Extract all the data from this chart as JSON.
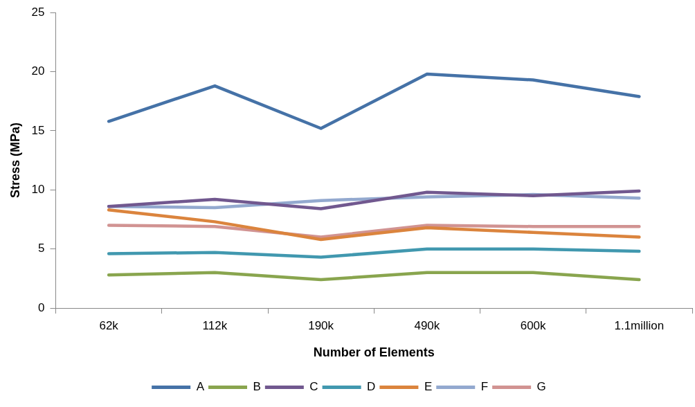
{
  "chart_data": {
    "type": "line",
    "xlabel": "Number of Elements",
    "ylabel": "Stress (MPa)",
    "categories": [
      "62k",
      "112k",
      "190k",
      "490k",
      "600k",
      "1.1million"
    ],
    "ylim": [
      0,
      25
    ],
    "yticks": [
      0,
      5,
      10,
      15,
      20,
      25
    ],
    "grid": false,
    "legend": "bottom",
    "marker": "none",
    "series": [
      {
        "name": "A",
        "color": "#4572a7",
        "values": [
          15.8,
          18.8,
          15.2,
          19.8,
          19.3,
          17.9
        ]
      },
      {
        "name": "B",
        "color": "#89a54e",
        "values": [
          2.8,
          3.0,
          2.4,
          3.0,
          3.0,
          2.4
        ]
      },
      {
        "name": "C",
        "color": "#71588f",
        "values": [
          8.6,
          9.2,
          8.4,
          9.8,
          9.5,
          9.9
        ]
      },
      {
        "name": "D",
        "color": "#4198af",
        "values": [
          4.6,
          4.7,
          4.3,
          5.0,
          5.0,
          4.8
        ]
      },
      {
        "name": "E",
        "color": "#db843d",
        "values": [
          8.3,
          7.3,
          5.8,
          6.8,
          6.4,
          6.0
        ]
      },
      {
        "name": "F",
        "color": "#93a9cf",
        "values": [
          8.6,
          8.5,
          9.1,
          9.4,
          9.6,
          9.3
        ]
      },
      {
        "name": "G",
        "color": "#d19392",
        "values": [
          7.0,
          6.9,
          6.0,
          7.0,
          6.9,
          6.9
        ]
      }
    ]
  }
}
